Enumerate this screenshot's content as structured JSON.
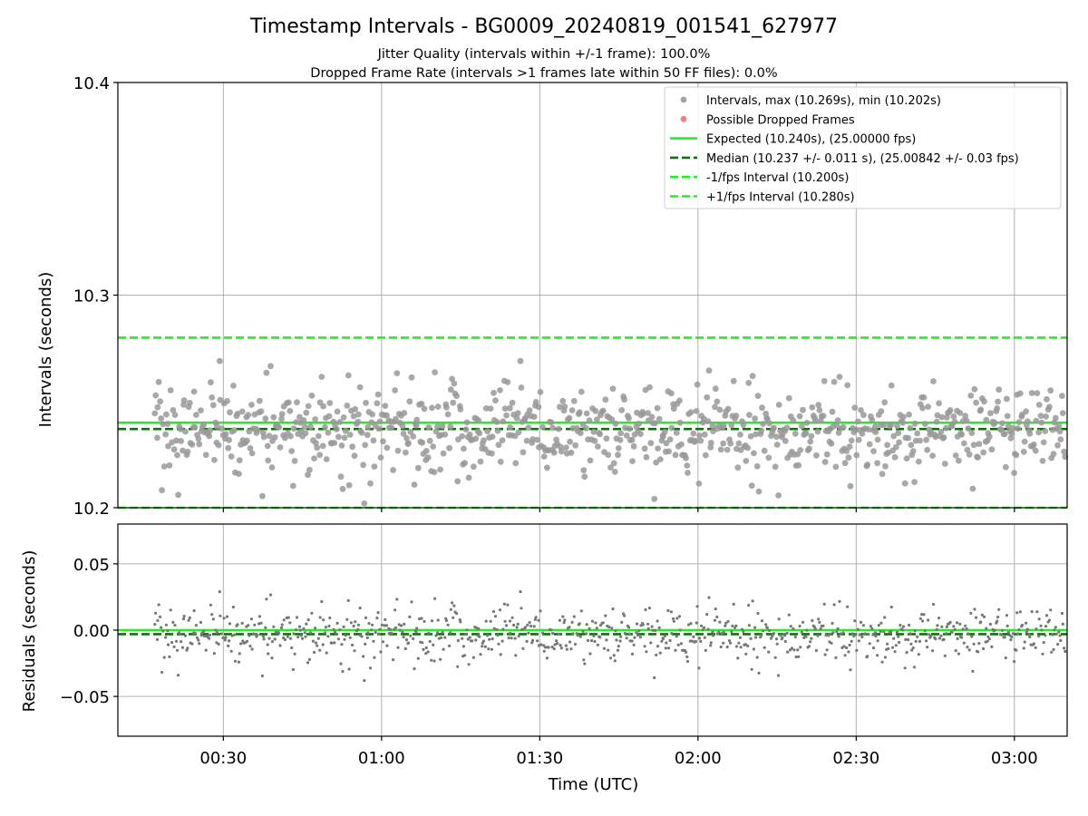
{
  "figure": {
    "title": "Timestamp Intervals - BG0009_20240819_001541_627977",
    "subtitle_1": "Jitter Quality (intervals within +/-1 frame): 100.0%",
    "subtitle_2": "Dropped Frame Rate (intervals >1 frames late within 50 FF files): 0.0%"
  },
  "chart_data": [
    {
      "type": "scatter",
      "panel": "top",
      "ylabel": "Intervals (seconds)",
      "ylim": [
        10.2,
        10.4
      ],
      "yticks": [
        10.2,
        10.3,
        10.4
      ],
      "ytick_labels": [
        "10.2",
        "10.3",
        "10.4"
      ],
      "grid": true,
      "legend_position": "upper right",
      "series": [
        {
          "name": "Intervals, max (10.269s), min (10.202s)",
          "kind": "points",
          "color": "#999999",
          "count": 860,
          "x_range": [
            "00:17",
            "03:10"
          ],
          "max": 10.269,
          "min": 10.202,
          "median": 10.237,
          "std": 0.011
        },
        {
          "name": "Possible Dropped Frames",
          "kind": "points",
          "color": "#f07070",
          "count": 0
        },
        {
          "name": "Expected (10.240s), (25.00000 fps)",
          "kind": "hline",
          "y": 10.24,
          "color": "#22ee22",
          "style": "solid"
        },
        {
          "name": "Median (10.237 +/- 0.011 s), (25.00842 +/- 0.03 fps)",
          "kind": "hline",
          "y": 10.237,
          "color": "#107010",
          "style": "dashed"
        },
        {
          "name": "-1/fps Interval (10.200s)",
          "kind": "hline",
          "y": 10.2,
          "color": "#22ee22",
          "style": "dashed"
        },
        {
          "name": "+1/fps Interval (10.280s)",
          "kind": "hline",
          "y": 10.28,
          "color": "#22ee22",
          "style": "dashed"
        }
      ]
    },
    {
      "type": "scatter",
      "panel": "bottom",
      "ylabel": "Residuals (seconds)",
      "xlabel": "Time (UTC)",
      "ylim": [
        -0.08,
        0.08
      ],
      "yticks": [
        -0.05,
        0.0,
        0.05
      ],
      "ytick_labels": [
        "−0.05",
        "0.00",
        "0.05"
      ],
      "xlim": [
        "00:10",
        "03:10"
      ],
      "xticks": [
        "00:30",
        "01:00",
        "01:30",
        "02:00",
        "02:30",
        "03:00"
      ],
      "xtick_labels": [
        "00:30",
        "01:00",
        "01:30",
        "02:00",
        "02:30",
        "03:00"
      ],
      "grid": true,
      "series": [
        {
          "name": "Residuals",
          "kind": "points",
          "color": "#777777",
          "count": 860
        },
        {
          "name": "Expected",
          "kind": "hline",
          "y": 0.0,
          "color": "#22ee22",
          "style": "solid"
        },
        {
          "name": "Median",
          "kind": "hline",
          "y": -0.003,
          "color": "#107010",
          "style": "dashed"
        }
      ]
    }
  ]
}
